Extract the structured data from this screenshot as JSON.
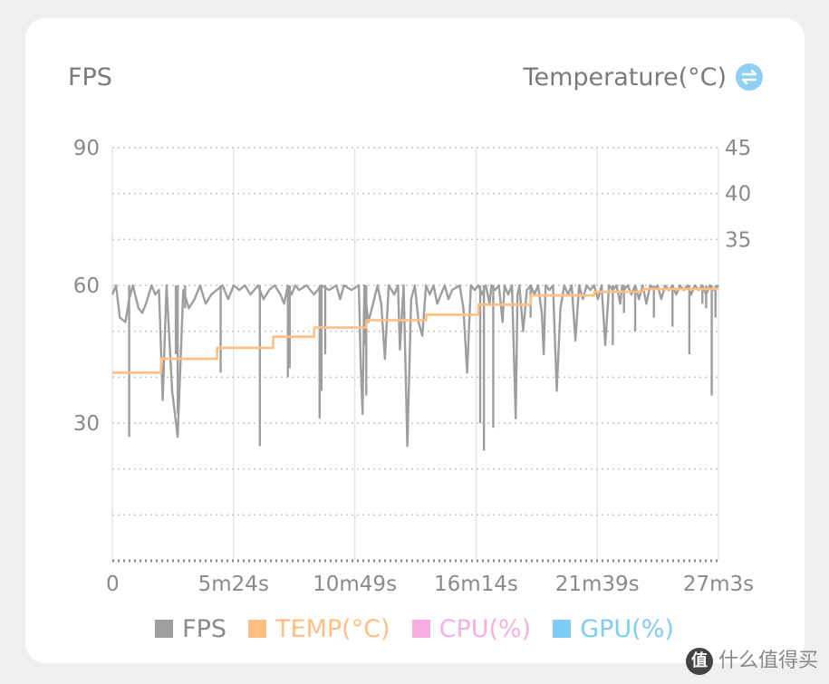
{
  "chart_data": {
    "type": "line",
    "left_axis_title": "FPS",
    "right_axis_title": "Temperature(°C)",
    "x_ticks": [
      "0",
      "5m24s",
      "10m49s",
      "16m14s",
      "21m39s",
      "27m3s"
    ],
    "x_range_seconds": [
      0,
      1623
    ],
    "y_left_range": [
      0,
      90
    ],
    "y_left_ticks": [
      "90",
      "60",
      "30"
    ],
    "y_left_tick_values": [
      90,
      60,
      30
    ],
    "y_right_range": [
      0,
      45
    ],
    "y_right_ticks": [
      "45",
      "40",
      "35"
    ],
    "y_right_tick_values": [
      45,
      40,
      35
    ],
    "grid": true,
    "legend_position": "bottom",
    "legend": [
      {
        "label": "FPS",
        "color": "#9e9e9e"
      },
      {
        "label": "TEMP(°C)",
        "color": "#ffbe82"
      },
      {
        "label": "CPU(%)",
        "color": "#f8aee0"
      },
      {
        "label": "GPU(%)",
        "color": "#7fcdf6"
      }
    ],
    "series": [
      {
        "name": "FPS",
        "baseline": 60,
        "dips": [
          [
            0,
            58
          ],
          [
            10,
            60
          ],
          [
            20,
            53
          ],
          [
            35,
            52
          ],
          [
            45,
            57
          ],
          [
            55,
            60
          ],
          [
            70,
            55
          ],
          [
            80,
            54
          ],
          [
            90,
            56
          ],
          [
            105,
            60
          ],
          [
            115,
            58
          ],
          [
            125,
            59
          ],
          [
            135,
            35
          ],
          [
            145,
            60
          ],
          [
            160,
            37
          ],
          [
            175,
            27
          ],
          [
            190,
            59
          ],
          [
            205,
            55
          ],
          [
            220,
            57
          ],
          [
            235,
            60
          ],
          [
            250,
            56
          ],
          [
            265,
            58
          ],
          [
            280,
            59
          ],
          [
            295,
            60
          ],
          [
            310,
            57
          ],
          [
            325,
            60
          ],
          [
            340,
            59
          ],
          [
            355,
            60
          ],
          [
            370,
            58
          ],
          [
            380,
            59
          ],
          [
            390,
            60
          ],
          [
            405,
            57
          ],
          [
            420,
            59
          ],
          [
            435,
            60
          ],
          [
            450,
            58
          ],
          [
            460,
            56
          ],
          [
            470,
            60
          ],
          [
            480,
            58
          ],
          [
            490,
            60
          ],
          [
            500,
            59
          ],
          [
            520,
            60
          ],
          [
            540,
            58
          ],
          [
            560,
            60
          ],
          [
            580,
            59
          ],
          [
            600,
            60
          ],
          [
            610,
            57
          ],
          [
            620,
            60
          ],
          [
            640,
            59
          ],
          [
            660,
            60
          ],
          [
            665,
            43
          ],
          [
            670,
            32
          ],
          [
            675,
            60
          ],
          [
            685,
            52
          ],
          [
            695,
            55
          ],
          [
            710,
            60
          ],
          [
            720,
            56
          ],
          [
            730,
            44
          ],
          [
            740,
            60
          ],
          [
            755,
            58
          ],
          [
            765,
            60
          ],
          [
            770,
            46
          ],
          [
            780,
            60
          ],
          [
            790,
            25
          ],
          [
            800,
            57
          ],
          [
            810,
            60
          ],
          [
            820,
            52
          ],
          [
            830,
            49
          ],
          [
            840,
            60
          ],
          [
            850,
            58
          ],
          [
            860,
            60
          ],
          [
            870,
            56
          ],
          [
            880,
            58
          ],
          [
            890,
            60
          ],
          [
            900,
            57
          ],
          [
            910,
            59
          ],
          [
            930,
            60
          ],
          [
            940,
            55
          ],
          [
            950,
            41
          ],
          [
            960,
            60
          ],
          [
            970,
            59
          ],
          [
            980,
            60
          ],
          [
            990,
            58
          ],
          [
            1000,
            60
          ],
          [
            1010,
            56
          ],
          [
            1015,
            60
          ],
          [
            1025,
            59
          ],
          [
            1035,
            60
          ],
          [
            1045,
            52
          ],
          [
            1050,
            60
          ],
          [
            1060,
            58
          ],
          [
            1070,
            60
          ],
          [
            1080,
            31
          ],
          [
            1085,
            58
          ],
          [
            1090,
            60
          ],
          [
            1100,
            50
          ],
          [
            1110,
            59
          ],
          [
            1120,
            60
          ],
          [
            1130,
            58
          ],
          [
            1140,
            60
          ],
          [
            1150,
            54
          ],
          [
            1155,
            45
          ],
          [
            1160,
            60
          ],
          [
            1170,
            59
          ],
          [
            1180,
            60
          ],
          [
            1190,
            37
          ],
          [
            1200,
            55
          ],
          [
            1210,
            60
          ],
          [
            1220,
            58
          ],
          [
            1230,
            60
          ],
          [
            1240,
            48
          ],
          [
            1250,
            60
          ],
          [
            1260,
            57
          ],
          [
            1270,
            60
          ],
          [
            1280,
            59
          ],
          [
            1290,
            60
          ],
          [
            1300,
            57
          ],
          [
            1310,
            60
          ],
          [
            1320,
            47
          ],
          [
            1330,
            60
          ],
          [
            1340,
            59
          ],
          [
            1350,
            60
          ],
          [
            1360,
            56
          ],
          [
            1365,
            60
          ],
          [
            1370,
            59
          ],
          [
            1380,
            60
          ],
          [
            1390,
            58
          ],
          [
            1400,
            60
          ],
          [
            1410,
            57
          ],
          [
            1420,
            60
          ],
          [
            1430,
            56
          ],
          [
            1440,
            60
          ],
          [
            1450,
            59
          ],
          [
            1460,
            60
          ],
          [
            1470,
            57
          ],
          [
            1480,
            60
          ],
          [
            1490,
            59
          ],
          [
            1500,
            60
          ],
          [
            1510,
            58
          ],
          [
            1520,
            60
          ],
          [
            1530,
            59
          ],
          [
            1540,
            60
          ],
          [
            1550,
            58
          ],
          [
            1560,
            60
          ],
          [
            1570,
            59
          ],
          [
            1580,
            60
          ],
          [
            1590,
            58
          ],
          [
            1600,
            60
          ],
          [
            1610,
            59
          ],
          [
            1623,
            60
          ]
        ],
        "deep_dips": [
          [
            45,
            27
          ],
          [
            170,
            45
          ],
          [
            175,
            32
          ],
          [
            195,
            55
          ],
          [
            290,
            41
          ],
          [
            395,
            25
          ],
          [
            470,
            40
          ],
          [
            475,
            42
          ],
          [
            555,
            31
          ],
          [
            560,
            37
          ],
          [
            570,
            45
          ],
          [
            675,
            47
          ],
          [
            680,
            36
          ],
          [
            985,
            30
          ],
          [
            995,
            24
          ],
          [
            1020,
            29
          ],
          [
            1120,
            53
          ],
          [
            1340,
            47
          ],
          [
            1370,
            54
          ],
          [
            1400,
            50
          ],
          [
            1450,
            53
          ],
          [
            1500,
            51
          ],
          [
            1545,
            45
          ],
          [
            1565,
            60
          ],
          [
            1580,
            56
          ],
          [
            1590,
            55
          ],
          [
            1605,
            36
          ],
          [
            1615,
            53
          ]
        ]
      },
      {
        "name": "TEMP(°C)",
        "x_seconds": [
          0,
          130,
          131,
          280,
          281,
          430,
          431,
          540,
          541,
          680,
          681,
          840,
          841,
          980,
          981,
          1120,
          1121,
          1290,
          1291,
          1420,
          1421,
          1623
        ],
        "y": [
          20.5,
          20.5,
          22,
          22,
          23.2,
          23.2,
          24.4,
          24.4,
          25.4,
          25.4,
          26.2,
          26.2,
          26.8,
          26.8,
          27.9,
          27.9,
          28.9,
          28.9,
          29.3,
          29.3,
          29.6,
          29.6
        ]
      }
    ]
  }
}
